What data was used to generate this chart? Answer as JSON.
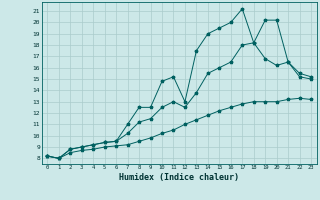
{
  "xlabel": "Humidex (Indice chaleur)",
  "bg_color": "#cce8e8",
  "grid_color": "#aacccc",
  "line_color": "#006060",
  "xlim": [
    -0.5,
    23.5
  ],
  "ylim": [
    7.5,
    21.8
  ],
  "xticks": [
    0,
    1,
    2,
    3,
    4,
    5,
    6,
    7,
    8,
    9,
    10,
    11,
    12,
    13,
    14,
    15,
    16,
    17,
    18,
    19,
    20,
    21,
    22,
    23
  ],
  "yticks": [
    8,
    9,
    10,
    11,
    12,
    13,
    14,
    15,
    16,
    17,
    18,
    19,
    20,
    21
  ],
  "curve_top_x": [
    0,
    1,
    2,
    3,
    4,
    5,
    6,
    7,
    8,
    9,
    10,
    11,
    12,
    13,
    14,
    15,
    16,
    17,
    18,
    19,
    20,
    21,
    22,
    23
  ],
  "curve_top_y": [
    8.2,
    8.0,
    8.8,
    9.0,
    9.2,
    9.4,
    9.5,
    11.0,
    12.5,
    12.5,
    14.8,
    15.2,
    13.0,
    17.5,
    19.0,
    19.5,
    20.0,
    21.2,
    18.2,
    20.2,
    20.2,
    16.5,
    15.2,
    15.0
  ],
  "curve_bot_x": [
    0,
    1,
    2,
    3,
    4,
    5,
    6,
    7,
    8,
    9,
    10,
    11,
    12,
    13,
    14,
    15,
    16,
    17,
    18,
    19,
    20,
    21,
    22,
    23
  ],
  "curve_bot_y": [
    8.2,
    8.0,
    8.5,
    8.7,
    8.8,
    9.0,
    9.1,
    9.2,
    9.5,
    9.8,
    10.2,
    10.5,
    11.0,
    11.4,
    11.8,
    12.2,
    12.5,
    12.8,
    13.0,
    13.0,
    13.0,
    13.2,
    13.3,
    13.2
  ],
  "curve_mid_x": [
    0,
    1,
    2,
    3,
    4,
    5,
    6,
    7,
    8,
    9,
    10,
    11,
    12,
    13,
    14,
    15,
    16,
    17,
    18,
    19,
    20,
    21,
    22,
    23
  ],
  "curve_mid_y": [
    8.2,
    8.0,
    8.8,
    9.0,
    9.2,
    9.4,
    9.5,
    10.2,
    11.2,
    11.5,
    12.5,
    13.0,
    12.5,
    13.8,
    15.5,
    16.0,
    16.5,
    18.0,
    18.2,
    16.8,
    16.2,
    16.5,
    15.5,
    15.2
  ]
}
